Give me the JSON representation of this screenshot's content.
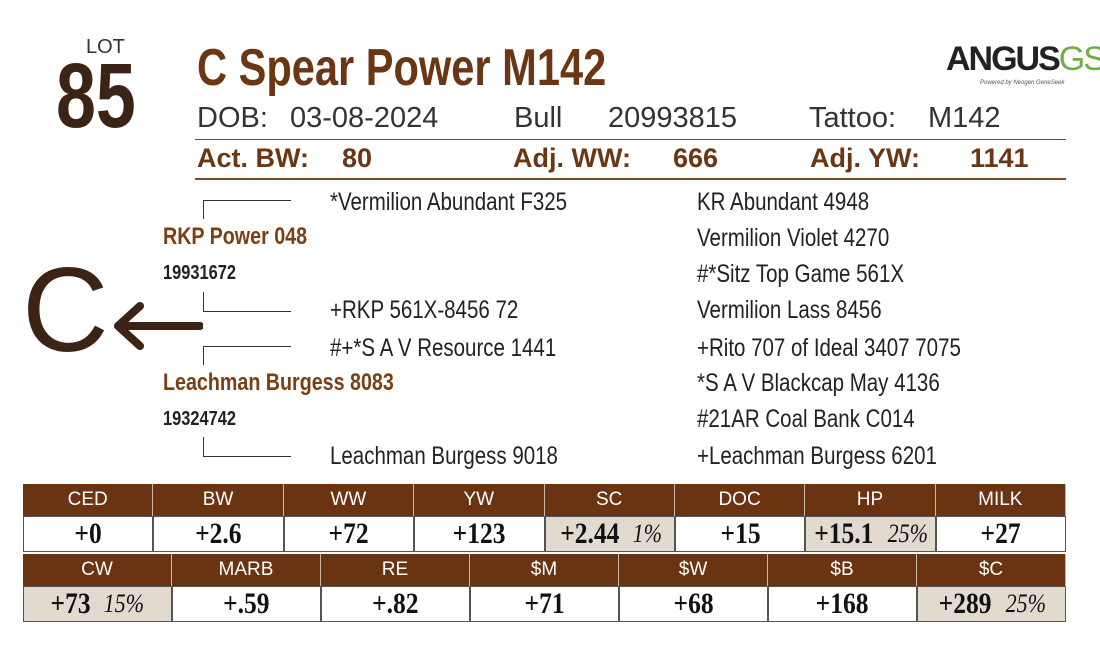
{
  "lot": {
    "label": "LOT",
    "number": "85"
  },
  "title": "C Spear Power M142",
  "logo": {
    "main": "ANGUS",
    "accent": "GS",
    "tagline": "Powered by Neogen GeneSeek"
  },
  "info": {
    "dob_label": "DOB:",
    "dob": "03-08-2024",
    "sex": "Bull",
    "registration": "20993815",
    "tattoo_label": "Tattoo:",
    "tattoo": "M142"
  },
  "weights": [
    {
      "label": "Act. BW:",
      "value": "80"
    },
    {
      "label": "Adj. WW:",
      "value": "666"
    },
    {
      "label": "Adj. YW:",
      "value": "1141"
    }
  ],
  "brand": "C",
  "pedigree": {
    "sire": {
      "name": "RKP Power 048",
      "registration": "19931672"
    },
    "dam": {
      "name": "Leachman Burgess 8083",
      "registration": "19324742"
    },
    "grandparents": [
      "*Vermilion Abundant F325",
      "+RKP 561X-8456 72",
      "#+*S A V Resource 1441",
      "Leachman Burgess 9018"
    ],
    "great_grandparents": [
      "KR Abundant 4948",
      "Vermilion Violet 4270",
      "#*Sitz Top Game 561X",
      "Vermilion Lass 8456",
      "+Rito 707 of Ideal 3407 7075",
      "*S A V Blackcap May 4136",
      "#21AR Coal Bank C014",
      "+Leachman Burgess 6201"
    ]
  },
  "epd_rows": [
    [
      {
        "trait": "CED",
        "value": "+0"
      },
      {
        "trait": "BW",
        "value": "+2.6"
      },
      {
        "trait": "WW",
        "value": "+72"
      },
      {
        "trait": "YW",
        "value": "+123"
      },
      {
        "trait": "SC",
        "value": "+2.44",
        "percentile": "1%"
      },
      {
        "trait": "DOC",
        "value": "+15"
      },
      {
        "trait": "HP",
        "value": "+15.1",
        "percentile": "25%"
      },
      {
        "trait": "MILK",
        "value": "+27"
      }
    ],
    [
      {
        "trait": "CW",
        "value": "+73",
        "percentile": "15%"
      },
      {
        "trait": "MARB",
        "value": "+.59"
      },
      {
        "trait": "RE",
        "value": "+.82"
      },
      {
        "trait": "$M",
        "value": "+71"
      },
      {
        "trait": "$W",
        "value": "+68"
      },
      {
        "trait": "$B",
        "value": "+168"
      },
      {
        "trait": "$C",
        "value": "+289",
        "percentile": "25%"
      }
    ]
  ]
}
